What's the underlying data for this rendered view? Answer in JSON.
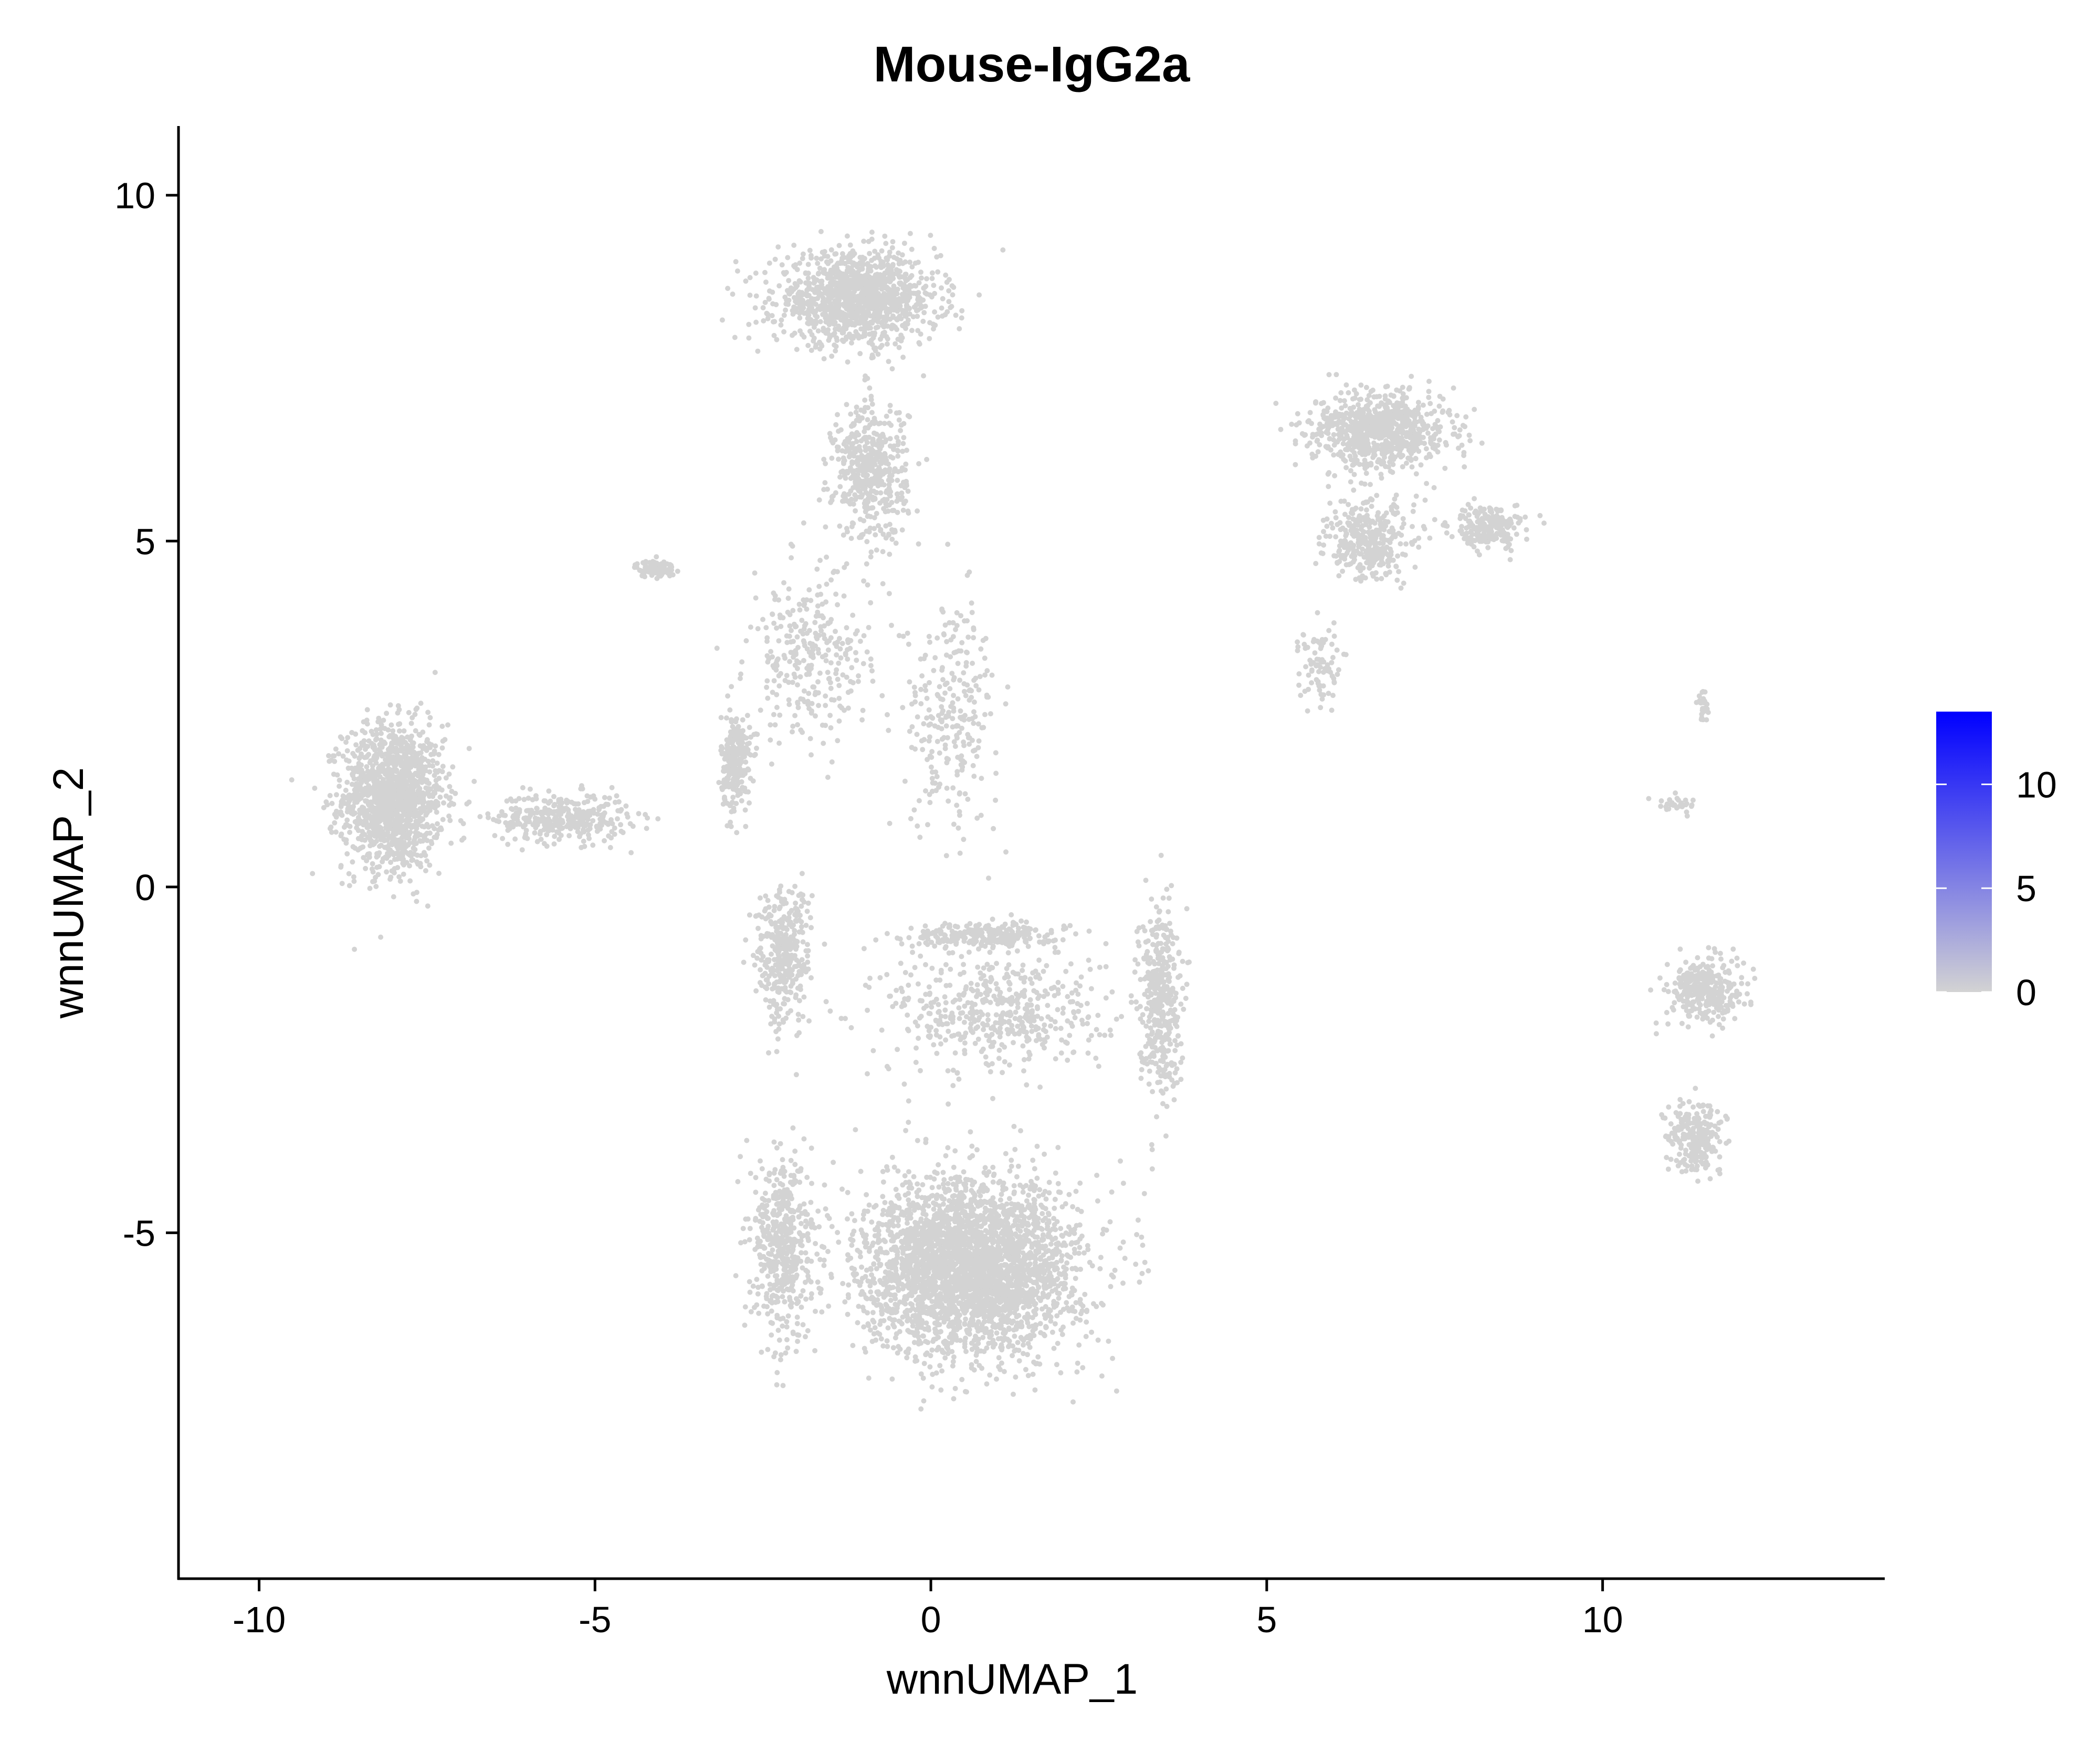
{
  "chart_data": {
    "type": "scatter",
    "title": "Mouse-IgG2a",
    "xlabel": "wnnUMAP_1",
    "ylabel": "wnnUMAP_2",
    "xlim": [
      -11.2,
      14.2
    ],
    "ylim": [
      -10.0,
      11.0
    ],
    "x_ticks": [
      -10,
      -5,
      0,
      5,
      10
    ],
    "x_tick_labels": [
      "-10",
      "-5",
      "0",
      "5",
      "10"
    ],
    "y_ticks": [
      -5,
      0,
      5,
      10
    ],
    "y_tick_labels": [
      "-5",
      "0",
      "5",
      "10"
    ],
    "grid": false,
    "legend_position": "right",
    "colorbar": {
      "min": 0,
      "max": 13.5,
      "ticks": [
        0,
        5,
        10
      ],
      "tick_labels": [
        "0",
        "5",
        "10"
      ],
      "low_color": "#d3d3d3",
      "high_color": "#0000ff"
    },
    "point_color": "#d3d3d3",
    "clusters": [
      {
        "center": [
          -8.0,
          1.3
        ],
        "spread": [
          0.75,
          1.05
        ],
        "n": 1400
      },
      {
        "center": [
          -5.5,
          1.0
        ],
        "spread": [
          1.0,
          0.35
        ],
        "n": 350
      },
      {
        "center": [
          -4.1,
          4.6
        ],
        "spread": [
          0.3,
          0.12
        ],
        "n": 90
      },
      {
        "center": [
          -2.9,
          1.8
        ],
        "spread": [
          0.22,
          0.7
        ],
        "n": 250
      },
      {
        "center": [
          -1.1,
          8.5
        ],
        "spread": [
          1.2,
          0.65
        ],
        "n": 1200
      },
      {
        "center": [
          -0.9,
          6.0
        ],
        "spread": [
          0.55,
          1.0
        ],
        "n": 500
      },
      {
        "center": [
          -1.8,
          3.3
        ],
        "spread": [
          0.9,
          1.2
        ],
        "n": 300
      },
      {
        "center": [
          0.3,
          2.5
        ],
        "spread": [
          0.7,
          1.6
        ],
        "n": 260
      },
      {
        "center": [
          0.8,
          -0.7
        ],
        "spread": [
          1.1,
          0.18
        ],
        "n": 260
      },
      {
        "center": [
          1.0,
          -1.8
        ],
        "spread": [
          1.6,
          0.9
        ],
        "n": 500
      },
      {
        "center": [
          3.4,
          -1.6
        ],
        "spread": [
          0.3,
          1.4
        ],
        "n": 400
      },
      {
        "center": [
          -2.2,
          -1.0
        ],
        "spread": [
          0.4,
          1.0
        ],
        "n": 350
      },
      {
        "center": [
          0.6,
          -5.5
        ],
        "spread": [
          1.6,
          1.25
        ],
        "n": 3200
      },
      {
        "center": [
          -2.2,
          -5.2
        ],
        "spread": [
          0.45,
          1.3
        ],
        "n": 500
      },
      {
        "center": [
          6.7,
          6.6
        ],
        "spread": [
          1.0,
          0.55
        ],
        "n": 800
      },
      {
        "center": [
          6.5,
          5.0
        ],
        "spread": [
          0.6,
          0.55
        ],
        "n": 350
      },
      {
        "center": [
          8.3,
          5.2
        ],
        "spread": [
          0.55,
          0.3
        ],
        "n": 220
      },
      {
        "center": [
          5.8,
          3.2
        ],
        "spread": [
          0.3,
          0.6
        ],
        "n": 80
      },
      {
        "center": [
          11.5,
          2.6
        ],
        "spread": [
          0.1,
          0.2
        ],
        "n": 30
      },
      {
        "center": [
          11.1,
          1.2
        ],
        "spread": [
          0.35,
          0.15
        ],
        "n": 30
      },
      {
        "center": [
          11.5,
          -1.5
        ],
        "spread": [
          0.55,
          0.45
        ],
        "n": 320
      },
      {
        "center": [
          11.4,
          -3.6
        ],
        "spread": [
          0.4,
          0.5
        ],
        "n": 240
      }
    ]
  }
}
